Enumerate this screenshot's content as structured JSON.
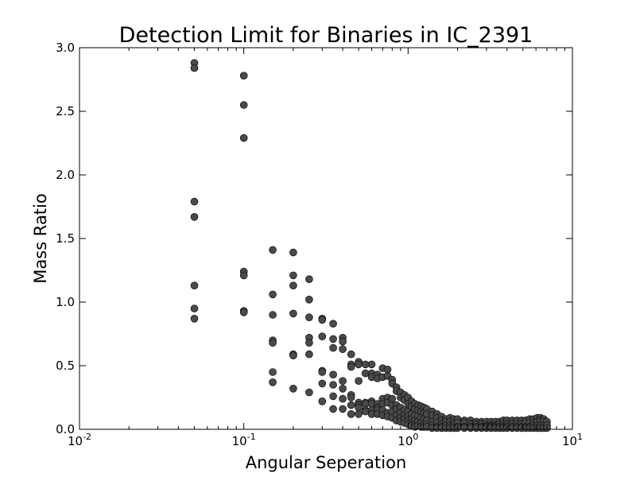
{
  "chart_data": {
    "type": "scatter",
    "title": "Detection Limit for Binaries in IC_2391",
    "xlabel": "Angular Seperation",
    "ylabel": "Mass Ratio",
    "xscale": "log",
    "xlim": [
      0.01,
      10
    ],
    "ylim": [
      0.0,
      3.0
    ],
    "x_ticks": [
      {
        "value": 0.01,
        "base": "10",
        "exp": "-2"
      },
      {
        "value": 0.1,
        "base": "10",
        "exp": "-1"
      },
      {
        "value": 1,
        "base": "10",
        "exp": "0"
      },
      {
        "value": 10,
        "base": "10",
        "exp": "1"
      }
    ],
    "y_ticks": [
      "0.0",
      "0.5",
      "1.0",
      "1.5",
      "2.0",
      "2.5",
      "3.0"
    ],
    "grid": false,
    "marker_color": "#4a4a4a",
    "series": [
      {
        "points": [
          [
            0.05,
            2.88
          ],
          [
            0.05,
            2.84
          ],
          [
            0.05,
            1.79
          ],
          [
            0.05,
            1.67
          ],
          [
            0.05,
            1.13
          ],
          [
            0.05,
            0.95
          ],
          [
            0.05,
            0.87
          ],
          [
            0.1,
            2.78
          ],
          [
            0.1,
            2.55
          ],
          [
            0.1,
            2.29
          ],
          [
            0.1,
            1.24
          ],
          [
            0.1,
            1.21
          ],
          [
            0.1,
            0.93
          ],
          [
            0.1,
            0.92
          ],
          [
            0.15,
            1.41
          ],
          [
            0.15,
            1.06
          ],
          [
            0.15,
            0.9
          ],
          [
            0.15,
            0.7
          ],
          [
            0.15,
            0.68
          ],
          [
            0.15,
            0.45
          ],
          [
            0.15,
            0.37
          ],
          [
            0.2,
            1.39
          ],
          [
            0.2,
            1.21
          ],
          [
            0.2,
            1.13
          ],
          [
            0.2,
            0.91
          ],
          [
            0.2,
            0.59
          ],
          [
            0.2,
            0.58
          ],
          [
            0.2,
            0.32
          ],
          [
            0.25,
            1.18
          ],
          [
            0.25,
            1.02
          ],
          [
            0.25,
            0.88
          ],
          [
            0.25,
            0.72
          ],
          [
            0.25,
            0.68
          ],
          [
            0.25,
            0.59
          ],
          [
            0.25,
            0.29
          ],
          [
            0.3,
            0.87
          ],
          [
            0.3,
            0.86
          ],
          [
            0.3,
            0.73
          ],
          [
            0.3,
            0.46
          ],
          [
            0.3,
            0.45
          ],
          [
            0.3,
            0.36
          ],
          [
            0.3,
            0.22
          ],
          [
            0.35,
            0.83
          ],
          [
            0.35,
            0.71
          ],
          [
            0.35,
            0.64
          ],
          [
            0.35,
            0.43
          ],
          [
            0.35,
            0.35
          ],
          [
            0.35,
            0.26
          ],
          [
            0.35,
            0.16
          ],
          [
            0.4,
            0.72
          ],
          [
            0.4,
            0.69
          ],
          [
            0.4,
            0.63
          ],
          [
            0.4,
            0.38
          ],
          [
            0.4,
            0.32
          ],
          [
            0.4,
            0.24
          ],
          [
            0.4,
            0.16
          ],
          [
            0.45,
            0.59
          ],
          [
            0.45,
            0.51
          ],
          [
            0.45,
            0.49
          ],
          [
            0.45,
            0.27
          ],
          [
            0.45,
            0.25
          ],
          [
            0.45,
            0.19
          ],
          [
            0.45,
            0.12
          ],
          [
            0.5,
            0.53
          ],
          [
            0.5,
            0.51
          ],
          [
            0.5,
            0.38
          ],
          [
            0.5,
            0.21
          ],
          [
            0.5,
            0.19
          ],
          [
            0.5,
            0.17
          ],
          [
            0.5,
            0.12
          ],
          [
            0.55,
            0.51
          ],
          [
            0.55,
            0.44
          ],
          [
            0.55,
            0.21
          ],
          [
            0.55,
            0.2
          ],
          [
            0.55,
            0.15
          ],
          [
            0.55,
            0.14
          ],
          [
            0.6,
            0.51
          ],
          [
            0.6,
            0.44
          ],
          [
            0.6,
            0.41
          ],
          [
            0.6,
            0.22
          ],
          [
            0.6,
            0.2
          ],
          [
            0.6,
            0.15
          ],
          [
            0.6,
            0.12
          ],
          [
            0.65,
            0.43
          ],
          [
            0.65,
            0.4
          ],
          [
            0.65,
            0.2
          ],
          [
            0.65,
            0.17
          ],
          [
            0.65,
            0.15
          ],
          [
            0.65,
            0.12
          ],
          [
            0.7,
            0.48
          ],
          [
            0.7,
            0.41
          ],
          [
            0.7,
            0.24
          ],
          [
            0.7,
            0.2
          ],
          [
            0.7,
            0.15
          ],
          [
            0.7,
            0.11
          ],
          [
            0.75,
            0.47
          ],
          [
            0.75,
            0.42
          ],
          [
            0.75,
            0.25
          ],
          [
            0.75,
            0.21
          ],
          [
            0.75,
            0.13
          ],
          [
            0.75,
            0.1
          ],
          [
            0.8,
            0.39
          ],
          [
            0.8,
            0.36
          ],
          [
            0.8,
            0.24
          ],
          [
            0.8,
            0.19
          ],
          [
            0.8,
            0.14
          ],
          [
            0.8,
            0.09
          ],
          [
            0.85,
            0.33
          ],
          [
            0.85,
            0.3
          ],
          [
            0.85,
            0.19
          ],
          [
            0.85,
            0.16
          ],
          [
            0.85,
            0.11
          ],
          [
            0.85,
            0.07
          ],
          [
            0.9,
            0.29
          ],
          [
            0.9,
            0.25
          ],
          [
            0.9,
            0.17
          ],
          [
            0.9,
            0.13
          ],
          [
            0.9,
            0.09
          ],
          [
            0.9,
            0.06
          ],
          [
            0.95,
            0.27
          ],
          [
            0.95,
            0.23
          ],
          [
            0.95,
            0.15
          ],
          [
            0.95,
            0.11
          ],
          [
            0.95,
            0.08
          ],
          [
            0.95,
            0.05
          ],
          [
            1.0,
            0.25
          ],
          [
            1.0,
            0.2
          ],
          [
            1.0,
            0.14
          ],
          [
            1.0,
            0.1
          ],
          [
            1.0,
            0.07
          ],
          [
            1.0,
            0.04
          ],
          [
            1.05,
            0.22
          ],
          [
            1.05,
            0.18
          ],
          [
            1.05,
            0.12
          ],
          [
            1.05,
            0.08
          ],
          [
            1.05,
            0.05
          ],
          [
            1.05,
            0.03
          ],
          [
            1.1,
            0.2
          ],
          [
            1.1,
            0.16
          ],
          [
            1.1,
            0.11
          ],
          [
            1.1,
            0.07
          ],
          [
            1.1,
            0.04
          ],
          [
            1.1,
            0.02
          ],
          [
            1.15,
            0.19
          ],
          [
            1.15,
            0.15
          ],
          [
            1.15,
            0.1
          ],
          [
            1.15,
            0.06
          ],
          [
            1.15,
            0.03
          ],
          [
            1.2,
            0.18
          ],
          [
            1.2,
            0.14
          ],
          [
            1.2,
            0.09
          ],
          [
            1.2,
            0.05
          ],
          [
            1.2,
            0.02
          ],
          [
            1.25,
            0.17
          ],
          [
            1.25,
            0.13
          ],
          [
            1.25,
            0.08
          ],
          [
            1.25,
            0.04
          ],
          [
            1.25,
            0.02
          ],
          [
            1.3,
            0.16
          ],
          [
            1.3,
            0.12
          ],
          [
            1.3,
            0.07
          ],
          [
            1.3,
            0.04
          ],
          [
            1.3,
            0.02
          ],
          [
            1.4,
            0.14
          ],
          [
            1.4,
            0.11
          ],
          [
            1.4,
            0.06
          ],
          [
            1.4,
            0.03
          ],
          [
            1.4,
            0.01
          ],
          [
            1.5,
            0.12
          ],
          [
            1.5,
            0.09
          ],
          [
            1.5,
            0.05
          ],
          [
            1.5,
            0.02
          ],
          [
            1.5,
            0.01
          ],
          [
            1.6,
            0.1
          ],
          [
            1.6,
            0.07
          ],
          [
            1.6,
            0.04
          ],
          [
            1.6,
            0.02
          ],
          [
            1.6,
            0.01
          ],
          [
            1.7,
            0.08
          ],
          [
            1.7,
            0.06
          ],
          [
            1.7,
            0.03
          ],
          [
            1.7,
            0.01
          ],
          [
            1.8,
            0.09
          ],
          [
            1.8,
            0.06
          ],
          [
            1.8,
            0.03
          ],
          [
            1.8,
            0.01
          ],
          [
            1.9,
            0.08
          ],
          [
            1.9,
            0.05
          ],
          [
            1.9,
            0.03
          ],
          [
            1.9,
            0.01
          ],
          [
            2.0,
            0.08
          ],
          [
            2.0,
            0.05
          ],
          [
            2.0,
            0.02
          ],
          [
            2.0,
            0.01
          ],
          [
            2.2,
            0.07
          ],
          [
            2.2,
            0.05
          ],
          [
            2.2,
            0.02
          ],
          [
            2.2,
            0.01
          ],
          [
            2.4,
            0.07
          ],
          [
            2.4,
            0.04
          ],
          [
            2.4,
            0.02
          ],
          [
            2.4,
            0.01
          ],
          [
            2.6,
            0.06
          ],
          [
            2.6,
            0.04
          ],
          [
            2.6,
            0.02
          ],
          [
            2.6,
            0.01
          ],
          [
            2.8,
            0.06
          ],
          [
            2.8,
            0.04
          ],
          [
            2.8,
            0.02
          ],
          [
            2.8,
            0.01
          ],
          [
            3.0,
            0.06
          ],
          [
            3.0,
            0.03
          ],
          [
            3.0,
            0.02
          ],
          [
            3.0,
            0.01
          ],
          [
            3.2,
            0.06
          ],
          [
            3.2,
            0.03
          ],
          [
            3.2,
            0.02
          ],
          [
            3.2,
            0.01
          ],
          [
            3.4,
            0.06
          ],
          [
            3.4,
            0.03
          ],
          [
            3.4,
            0.02
          ],
          [
            3.4,
            0.01
          ],
          [
            3.6,
            0.06
          ],
          [
            3.6,
            0.04
          ],
          [
            3.6,
            0.02
          ],
          [
            3.6,
            0.01
          ],
          [
            3.8,
            0.07
          ],
          [
            3.8,
            0.04
          ],
          [
            3.8,
            0.02
          ],
          [
            3.8,
            0.01
          ],
          [
            4.0,
            0.07
          ],
          [
            4.0,
            0.04
          ],
          [
            4.0,
            0.02
          ],
          [
            4.0,
            0.01
          ],
          [
            4.3,
            0.07
          ],
          [
            4.3,
            0.04
          ],
          [
            4.3,
            0.02
          ],
          [
            4.3,
            0.01
          ],
          [
            4.6,
            0.07
          ],
          [
            4.6,
            0.04
          ],
          [
            4.6,
            0.02
          ],
          [
            4.6,
            0.01
          ],
          [
            4.9,
            0.07
          ],
          [
            4.9,
            0.04
          ],
          [
            4.9,
            0.02
          ],
          [
            4.9,
            0.01
          ],
          [
            5.2,
            0.07
          ],
          [
            5.2,
            0.05
          ],
          [
            5.2,
            0.02
          ],
          [
            5.2,
            0.01
          ],
          [
            5.5,
            0.08
          ],
          [
            5.5,
            0.05
          ],
          [
            5.5,
            0.02
          ],
          [
            5.5,
            0.01
          ],
          [
            5.8,
            0.08
          ],
          [
            5.8,
            0.05
          ],
          [
            5.8,
            0.03
          ],
          [
            5.8,
            0.01
          ],
          [
            6.1,
            0.09
          ],
          [
            6.1,
            0.06
          ],
          [
            6.1,
            0.03
          ],
          [
            6.1,
            0.01
          ],
          [
            6.4,
            0.09
          ],
          [
            6.4,
            0.07
          ],
          [
            6.4,
            0.03
          ],
          [
            6.4,
            0.01
          ],
          [
            6.7,
            0.08
          ],
          [
            6.7,
            0.06
          ],
          [
            6.7,
            0.03
          ],
          [
            6.7,
            0.01
          ],
          [
            7.0,
            0.06
          ],
          [
            7.0,
            0.03
          ],
          [
            7.0,
            0.01
          ]
        ]
      }
    ]
  }
}
